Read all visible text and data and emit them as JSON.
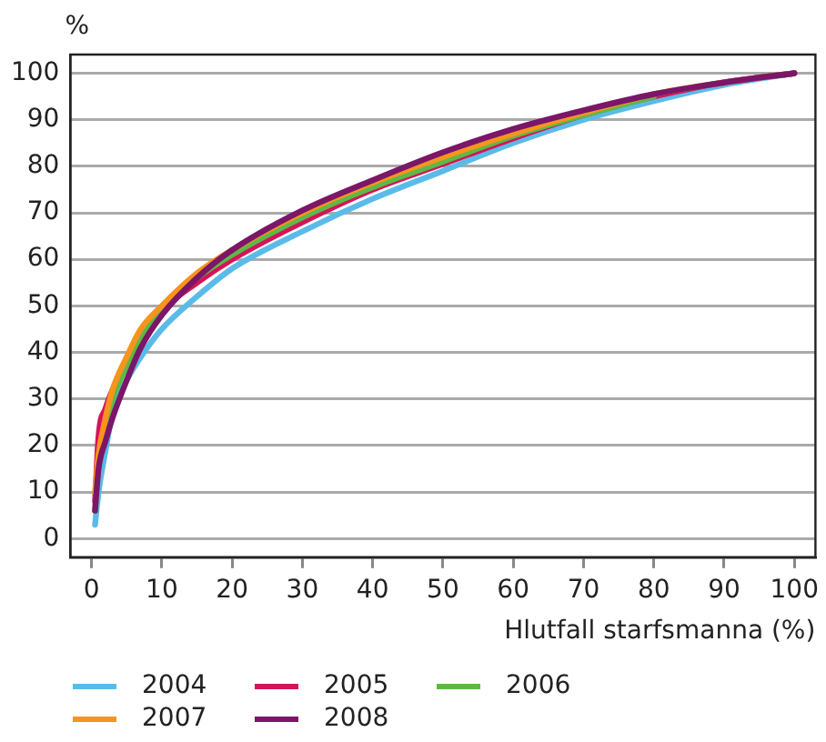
{
  "chart_data": {
    "type": "line",
    "ylabel": "%",
    "xlabel": "Hlutfall starfsmanna (%)",
    "x": [
      0.5,
      1,
      2,
      3,
      5,
      7,
      10,
      15,
      20,
      30,
      40,
      50,
      60,
      70,
      80,
      90,
      100
    ],
    "xlim": [
      -3,
      103
    ],
    "ylim": [
      -4,
      104
    ],
    "xticks": [
      0,
      10,
      20,
      30,
      40,
      50,
      60,
      70,
      80,
      90,
      100
    ],
    "yticks": [
      0,
      10,
      20,
      30,
      40,
      50,
      60,
      70,
      80,
      90,
      100
    ],
    "grid": "y",
    "legend": "bottom",
    "marker": "none",
    "line_style": "solid",
    "series": [
      {
        "name": "2004",
        "color": "#5bbbe8",
        "values": [
          3,
          10,
          19,
          27,
          34,
          39,
          45,
          52,
          58,
          66,
          73,
          79,
          85,
          90,
          94,
          97.5,
          100
        ]
      },
      {
        "name": "2005",
        "color": "#d4145a",
        "values": [
          8,
          22,
          28,
          32,
          38,
          43,
          49,
          55,
          60,
          68,
          75,
          80.5,
          86,
          91,
          95,
          98,
          100
        ]
      },
      {
        "name": "2006",
        "color": "#5cb947",
        "values": [
          6,
          16,
          24,
          30,
          37,
          43,
          49,
          56,
          61,
          69,
          75.5,
          81,
          86.5,
          91,
          95,
          null,
          null
        ]
      },
      {
        "name": "2007",
        "color": "#f7941d",
        "values": [
          10,
          18,
          26,
          32,
          39,
          45,
          50,
          57,
          62,
          70,
          76.5,
          82,
          87,
          91.5,
          95.5,
          98,
          100
        ]
      },
      {
        "name": "2008",
        "color": "#7b1669",
        "values": [
          6,
          15,
          21,
          26,
          34,
          41,
          48,
          56,
          62,
          70.5,
          77,
          83,
          88,
          92,
          95.5,
          98,
          100
        ]
      }
    ]
  }
}
